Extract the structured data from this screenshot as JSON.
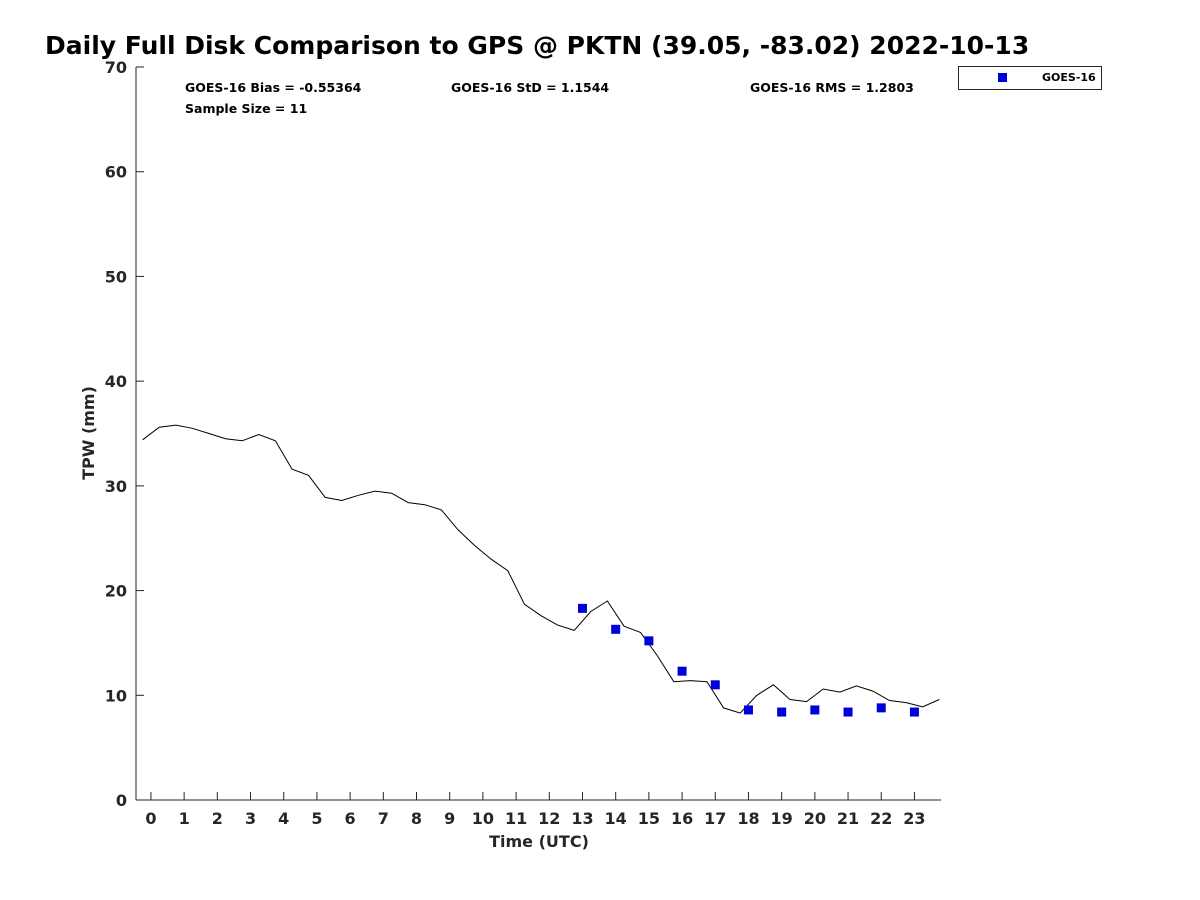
{
  "chart_data": {
    "type": "scatter",
    "title": "Daily Full Disk Comparison to GPS @ PKTN (39.05, -83.02) 2022-10-13",
    "xlabel": "Time (UTC)",
    "ylabel": "TPW (mm)",
    "xlim": [
      -0.45,
      23.8
    ],
    "ylim": [
      0,
      70
    ],
    "x_ticks": [
      "0",
      "1",
      "2",
      "3",
      "4",
      "5",
      "6",
      "7",
      "8",
      "9",
      "10",
      "11",
      "12",
      "13",
      "14",
      "15",
      "16",
      "17",
      "18",
      "19",
      "20",
      "21",
      "22",
      "23"
    ],
    "y_ticks": [
      "0",
      "10",
      "20",
      "30",
      "40",
      "50",
      "60",
      "70"
    ],
    "grid": false,
    "legend_position": "top-right",
    "stats": {
      "bias": "GOES-16 Bias = -0.55364",
      "std": "GOES-16 StD = 1.1544",
      "rms": "GOES-16 RMS = 1.2803",
      "sample_size": "Sample Size = 11"
    },
    "reference_line": {
      "color": "#000000",
      "x": [
        -0.25,
        0.25,
        0.75,
        1.25,
        1.75,
        2.25,
        2.75,
        3.25,
        3.75,
        4.25,
        4.75,
        5.25,
        5.75,
        6.25,
        6.75,
        7.25,
        7.75,
        8.25,
        8.75,
        9.25,
        9.75,
        10.25,
        10.75,
        11.25,
        11.75,
        12.25,
        12.75,
        13.25,
        13.75,
        14.25,
        14.75,
        15.25,
        15.75,
        16.25,
        16.75,
        17.25,
        17.75,
        18.25,
        18.75,
        19.25,
        19.75,
        20.25,
        20.75,
        21.25,
        21.75,
        22.25,
        22.75,
        23.25,
        23.75
      ],
      "y": [
        34.4,
        35.6,
        35.8,
        35.5,
        35.0,
        34.5,
        34.3,
        34.9,
        34.3,
        31.6,
        31.0,
        28.9,
        28.6,
        29.1,
        29.5,
        29.3,
        28.4,
        28.2,
        27.7,
        25.8,
        24.3,
        23.0,
        21.9,
        18.7,
        17.6,
        16.7,
        16.2,
        18.0,
        19.0,
        16.6,
        16.0,
        13.8,
        11.3,
        11.4,
        11.3,
        8.8,
        8.3,
        10.0,
        11.0,
        9.6,
        9.4,
        10.6,
        10.3,
        10.9,
        10.4,
        9.5,
        9.3,
        8.9,
        9.6
      ]
    },
    "series": [
      {
        "name": "GOES-16",
        "color": "#0000dd",
        "marker": "square",
        "x": [
          13,
          14,
          15,
          16,
          17,
          18,
          19,
          20,
          21,
          22,
          23
        ],
        "y": [
          18.3,
          16.3,
          15.2,
          12.3,
          11.0,
          8.6,
          8.4,
          8.6,
          8.4,
          8.8,
          8.4
        ]
      }
    ]
  }
}
